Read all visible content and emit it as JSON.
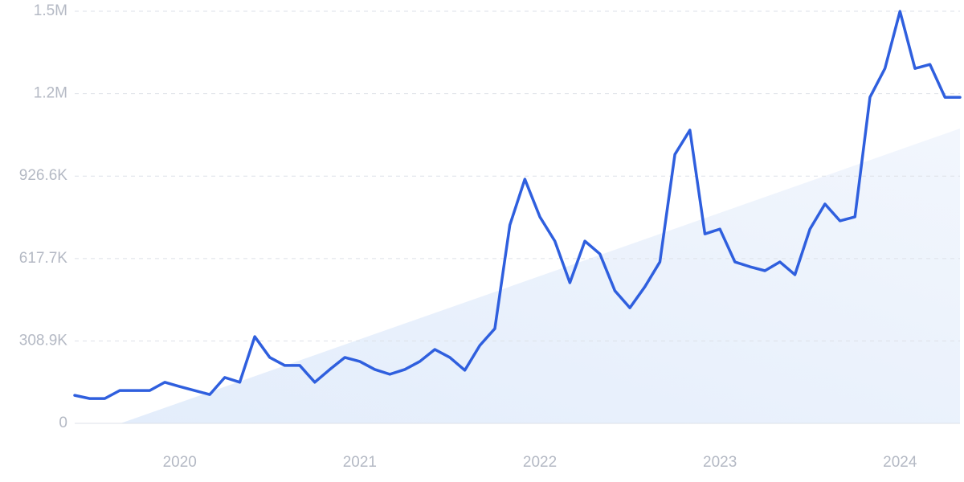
{
  "chart_data": {
    "type": "line",
    "categories": [
      null,
      null,
      null,
      null,
      null,
      null,
      null,
      "2020",
      null,
      null,
      null,
      null,
      null,
      null,
      null,
      null,
      null,
      null,
      null,
      "2021",
      null,
      null,
      null,
      null,
      null,
      null,
      null,
      null,
      null,
      null,
      null,
      "2022",
      null,
      null,
      null,
      null,
      null,
      null,
      null,
      null,
      null,
      null,
      null,
      "2023",
      null,
      null,
      null,
      null,
      null,
      null,
      null,
      null,
      null,
      null,
      null,
      "2024",
      null,
      null,
      null,
      null
    ],
    "series": [
      {
        "color": "#2f5fde",
        "values": [
          105000,
          93000,
          93000,
          123000,
          123000,
          123000,
          154000,
          138000,
          123000,
          108000,
          172000,
          154000,
          325000,
          247000,
          217000,
          217000,
          154000,
          202000,
          247000,
          232000,
          202000,
          184000,
          202000,
          232000,
          277000,
          247000,
          199000,
          292000,
          355000,
          743000,
          915000,
          774000,
          683000,
          527000,
          683000,
          635000,
          497000,
          433000,
          512000,
          605000,
          1008000,
          1099000,
          710000,
          728000,
          605000,
          587000,
          572000,
          605000,
          557000,
          728000,
          822000,
          759000,
          774000,
          1222000,
          1330000,
          1544000,
          1330000,
          1345000,
          1222000,
          1222000
        ]
      }
    ],
    "ylim": [
      0,
      1544400
    ],
    "yticks": [
      0,
      {
        "value": 308900,
        "label": "308.9K"
      },
      {
        "value": 617700,
        "label": "617.7K"
      },
      {
        "value": 926600,
        "label": "926.6K"
      },
      {
        "value": 1235500,
        "label": "1.2M"
      },
      {
        "value": 1544400,
        "label": "1.5M"
      }
    ],
    "grid": true
  }
}
